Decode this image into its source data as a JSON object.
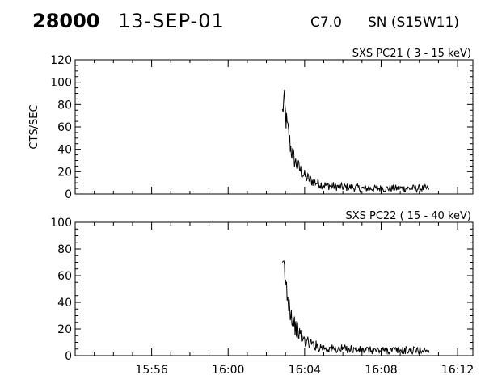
{
  "header": {
    "event_id": "28000",
    "date": "13-SEP-01",
    "flare_class": "C7.0",
    "location": "SN (S15W11)"
  },
  "chart_data": [
    {
      "type": "line",
      "title": "SXS PC21  (  3 - 15 keV)",
      "ylabel": "CTS/SEC",
      "xlabel": "",
      "ylim": [
        0,
        120
      ],
      "yticks": [
        0,
        20,
        40,
        60,
        80,
        100,
        120
      ],
      "xlim_minutes_after_15_52": [
        0,
        20.8
      ],
      "xticks": [
        "15:56",
        "16:00",
        "16:04",
        "16:08",
        "16:12"
      ],
      "series": [
        {
          "x_time": [
            "16:02:50",
            "16:02:55",
            "16:03:00",
            "16:03:05",
            "16:03:10",
            "16:03:15",
            "16:03:20",
            "16:03:30",
            "16:03:40",
            "16:03:50",
            "16:04:00",
            "16:04:20",
            "16:04:40",
            "16:05:00",
            "16:05:30",
            "16:06:00",
            "16:06:30",
            "16:07:00",
            "16:07:30",
            "16:08:00",
            "16:08:30",
            "16:09:00",
            "16:09:30",
            "16:10:00",
            "16:10:30"
          ],
          "values": [
            72,
            85,
            70,
            60,
            52,
            44,
            37,
            29,
            24,
            20,
            16,
            12,
            10,
            8,
            7,
            6,
            6,
            5,
            5,
            5,
            5,
            5,
            5,
            5,
            5
          ]
        }
      ]
    },
    {
      "type": "line",
      "title": "SXS PC22  ( 15 - 40 keV)",
      "ylabel": "",
      "xlabel": "",
      "ylim": [
        0,
        100
      ],
      "yticks": [
        0,
        20,
        40,
        60,
        80,
        100
      ],
      "xlim_minutes_after_15_52": [
        0,
        20.8
      ],
      "xticks": [
        "15:56",
        "16:00",
        "16:04",
        "16:08",
        "16:12"
      ],
      "series": [
        {
          "x_time": [
            "16:02:50",
            "16:02:55",
            "16:03:00",
            "16:03:05",
            "16:03:10",
            "16:03:15",
            "16:03:20",
            "16:03:30",
            "16:03:40",
            "16:03:50",
            "16:04:00",
            "16:04:20",
            "16:04:40",
            "16:05:00",
            "16:05:30",
            "16:06:00",
            "16:06:30",
            "16:07:00",
            "16:07:30",
            "16:08:00",
            "16:08:30",
            "16:09:00",
            "16:09:30",
            "16:10:00",
            "16:10:30"
          ],
          "values": [
            60,
            67,
            55,
            48,
            42,
            35,
            29,
            22,
            18,
            14,
            11,
            9,
            7,
            6,
            5,
            5,
            5,
            4,
            4,
            4,
            4,
            4,
            4,
            4,
            4
          ]
        }
      ]
    }
  ]
}
